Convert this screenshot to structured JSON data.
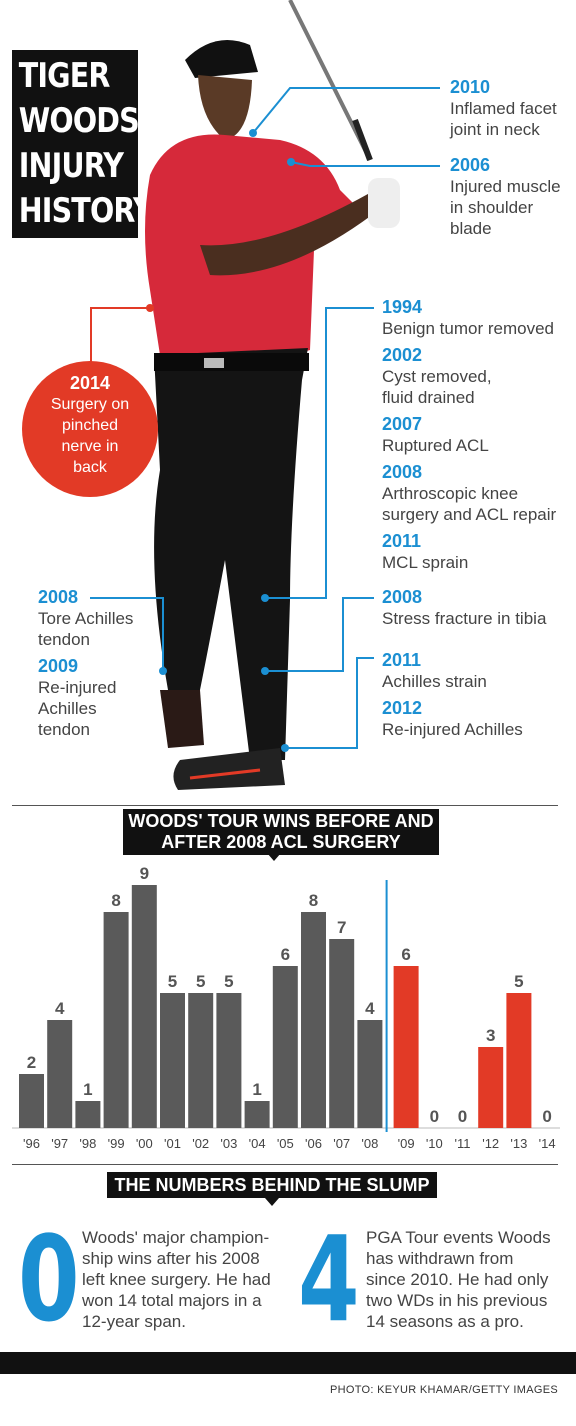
{
  "title": [
    "TIGER",
    "WOODS'",
    "INJURY",
    "HISTORY"
  ],
  "injuries_upper": [
    {
      "year": "2010",
      "desc": [
        "Inflamed facet",
        "joint in neck"
      ]
    },
    {
      "year": "2006",
      "desc": [
        "Injured muscle",
        "in shoulder",
        "blade"
      ]
    }
  ],
  "back_injury": {
    "year": "2014",
    "desc": [
      "Surgery on",
      "pinched",
      "nerve in",
      "back"
    ]
  },
  "injuries_right": [
    {
      "year": "1994",
      "desc": [
        "Benign tumor removed"
      ]
    },
    {
      "year": "2002",
      "desc": [
        "Cyst removed,",
        "fluid drained"
      ]
    },
    {
      "year": "2007",
      "desc": [
        "Ruptured ACL"
      ]
    },
    {
      "year": "2008",
      "desc": [
        "Arthroscopic knee",
        "surgery and ACL repair"
      ]
    },
    {
      "year": "2011",
      "desc": [
        "MCL sprain"
      ]
    }
  ],
  "injuries_tibia": [
    {
      "year": "2008",
      "desc": [
        "Stress fracture in tibia"
      ]
    }
  ],
  "injuries_achilles_right": [
    {
      "year": "2011",
      "desc": [
        "Achilles strain"
      ]
    },
    {
      "year": "2012",
      "desc": [
        "Re-injured Achilles"
      ]
    }
  ],
  "injuries_left": [
    {
      "year": "2008",
      "desc": [
        "Tore Achilles",
        "tendon"
      ]
    },
    {
      "year": "2009",
      "desc": [
        "Re-injured",
        "Achilles",
        "tendon"
      ]
    }
  ],
  "chart_heading": [
    "WOODS' TOUR WINS BEFORE AND",
    "AFTER 2008 ACL SURGERY"
  ],
  "chart_data": {
    "type": "bar",
    "title": "WOODS' TOUR WINS BEFORE AND AFTER 2008 ACL SURGERY",
    "categories": [
      "'96",
      "'97",
      "'98",
      "'99",
      "'00",
      "'01",
      "'02",
      "'03",
      "'04",
      "'05",
      "'06",
      "'07",
      "'08",
      "'09",
      "'10",
      "'11",
      "'12",
      "'13",
      "'14"
    ],
    "values": [
      2,
      4,
      1,
      8,
      9,
      5,
      5,
      5,
      1,
      6,
      8,
      7,
      4,
      6,
      0,
      0,
      3,
      5,
      0
    ],
    "ylim": [
      0,
      9
    ],
    "before_count": 13,
    "colors": {
      "before": "#5a5a5a",
      "after": "#e23a26",
      "divider": "#1b8fd2"
    }
  },
  "slump_heading": "THE NUMBERS BEHIND THE SLUMP",
  "stats": [
    {
      "number": "0",
      "text": [
        "Woods' major champion-",
        "ship wins after his 2008",
        "left knee surgery. He had",
        "won 14 total majors in a",
        "12-year span."
      ]
    },
    {
      "number": "4",
      "text": [
        "PGA Tour events Woods",
        "has withdrawn from",
        "since 2010. He had only",
        "two WDs in his previous",
        "14 seasons as a pro."
      ]
    }
  ],
  "credit": "PHOTO: KEYUR KHAMAR/GETTY IMAGES",
  "colors": {
    "accent_blue": "#1b8fd2",
    "accent_red": "#e23a26"
  }
}
